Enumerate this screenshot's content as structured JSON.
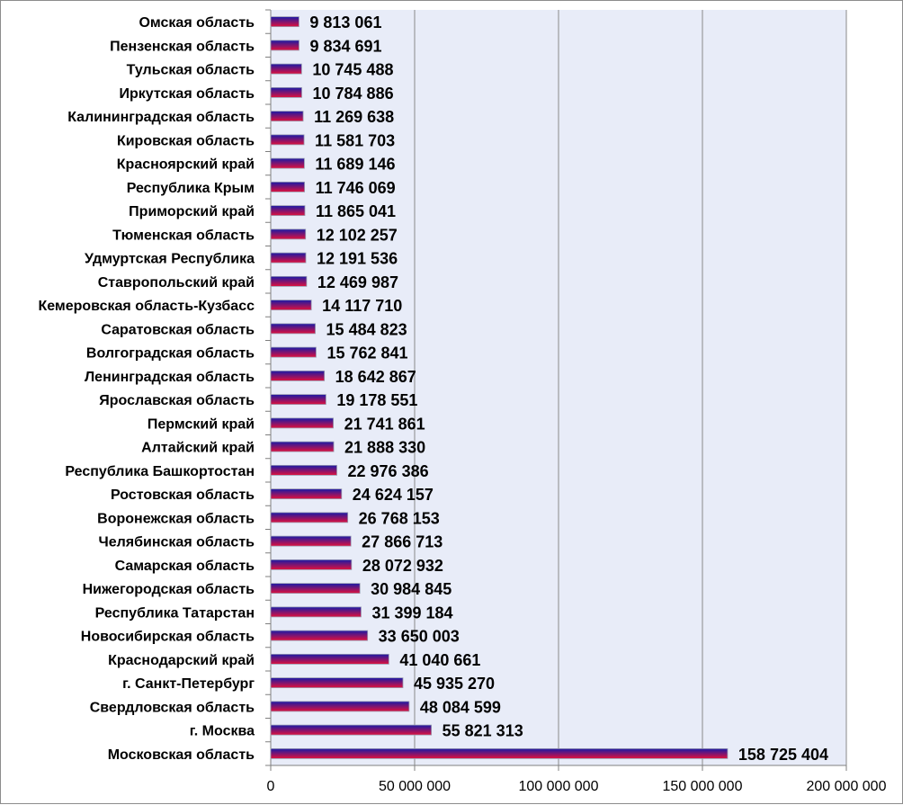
{
  "chart_data": {
    "type": "bar",
    "orientation": "horizontal",
    "title": "",
    "xlabel": "",
    "ylabel": "",
    "xlim": [
      0,
      200000000
    ],
    "x_ticks": [
      0,
      50000000,
      100000000,
      150000000,
      200000000
    ],
    "x_tick_labels": [
      "0",
      "50 000 000",
      "100 000 000",
      "150 000 000",
      "200 000 000"
    ],
    "grid": "vertical",
    "legend": "none",
    "colors": {
      "bar_top": "#1a1aa6",
      "bar_bottom": "#e0103c",
      "plot_bg": "#e8ecf8",
      "grid": "#8a8a8a"
    },
    "categories": [
      "Омская область",
      "Пензенская область",
      "Тульская область",
      "Иркутская область",
      "Калининградская область",
      "Кировская область",
      "Красноярский край",
      "Республика Крым",
      "Приморский край",
      "Тюменская область",
      "Удмуртская Республика",
      "Ставропольский край",
      "Кемеровская область-Кузбасс",
      "Саратовская область",
      "Волгоградская область",
      "Ленинградская область",
      "Ярославская область",
      "Пермский край",
      "Алтайский край",
      "Республика Башкортостан",
      "Ростовская область",
      "Воронежская область",
      "Челябинская область",
      "Самарская область",
      "Нижегородская область",
      "Республика Татарстан",
      "Новосибирская область",
      "Краснодарский край",
      "г. Санкт-Петербург",
      "Свердловская область",
      "г. Москва",
      "Московская область"
    ],
    "values": [
      9813061,
      9834691,
      10745488,
      10784886,
      11269638,
      11581703,
      11689146,
      11746069,
      11865041,
      12102257,
      12191536,
      12469987,
      14117710,
      15484823,
      15762841,
      18642867,
      19178551,
      21741861,
      21888330,
      22976386,
      24624157,
      26768153,
      27866713,
      28072932,
      30984845,
      31399184,
      33650003,
      41040661,
      45935270,
      48084599,
      55821313,
      158725404
    ],
    "value_labels": [
      "9 813 061",
      "9 834 691",
      "10 745 488",
      "10 784 886",
      "11 269 638",
      "11 581 703",
      "11 689 146",
      "11 746 069",
      "11 865 041",
      "12 102 257",
      "12 191 536",
      "12 469 987",
      "14 117 710",
      "15 484 823",
      "15 762 841",
      "18 642 867",
      "19 178 551",
      "21 741 861",
      "21 888 330",
      "22 976 386",
      "24 624 157",
      "26 768 153",
      "27 866 713",
      "28 072 932",
      "30 984 845",
      "31 399 184",
      "33 650 003",
      "41 040 661",
      "45 935 270",
      "48 084 599",
      "55 821 313",
      "158 725 404"
    ]
  }
}
